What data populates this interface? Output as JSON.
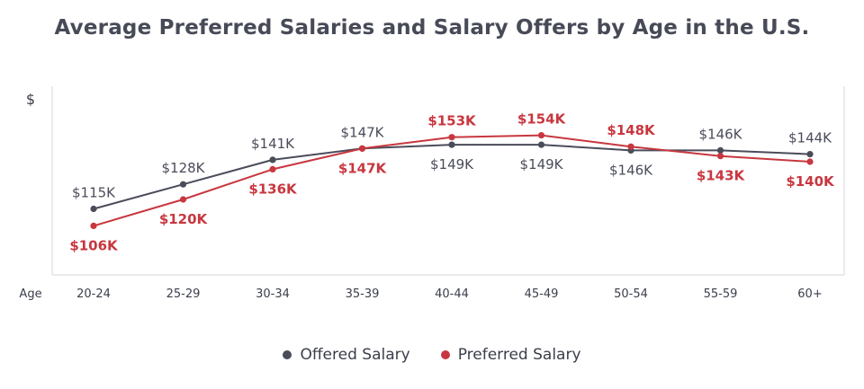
{
  "chart_data": {
    "type": "line",
    "title": "Average Preferred Salaries and Salary Offers by Age in the U.S.",
    "xlabel": "Age",
    "ylabel": "$",
    "categories": [
      "20-24",
      "25-29",
      "30-34",
      "35-39",
      "40-44",
      "45-49",
      "50-54",
      "55-59",
      "60+"
    ],
    "ylim": [
      80,
      180
    ],
    "grid": false,
    "legend": "bottom-center",
    "series": [
      {
        "name": "Offered Salary",
        "color": "#4a4c5a",
        "values": [
          115,
          128,
          141,
          147,
          149,
          149,
          146,
          146,
          144
        ],
        "labels": [
          "$115K",
          "$128K",
          "$141K",
          "$147K",
          "$149K",
          "$149K",
          "$146K",
          "$146K",
          "$144K"
        ],
        "label_position": [
          "above",
          "above",
          "above",
          "above",
          "below",
          "below",
          "below",
          "above",
          "above"
        ]
      },
      {
        "name": "Preferred Salary",
        "color": "#c8373f",
        "values": [
          106,
          120,
          136,
          147,
          153,
          154,
          148,
          143,
          140
        ],
        "labels": [
          "$106K",
          "$120K",
          "$136K",
          "$147K",
          "$153K",
          "$154K",
          "$148K",
          "$143K",
          "$140K"
        ],
        "label_position": [
          "below",
          "below",
          "below",
          "below",
          "above",
          "above",
          "above",
          "below",
          "below"
        ]
      }
    ]
  }
}
